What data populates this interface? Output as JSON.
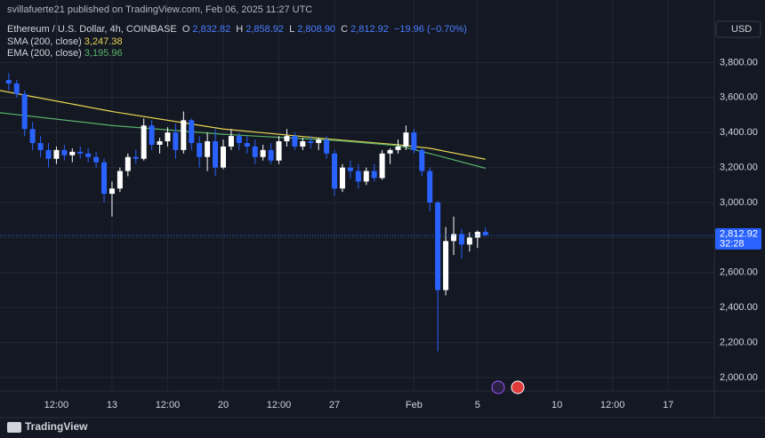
{
  "chart_data": {
    "type": "candlestick",
    "published": "svillafuerte21 published on TradingView.com, Feb 06, 2025 11:27 UTC",
    "symbol": "Ethereum / U.S. Dollar, 4h, COINBASE",
    "ohlc_legend": {
      "o_key": "O",
      "o": "2,832.82",
      "h_key": "H",
      "h": "2,858.92",
      "l_key": "L",
      "l": "2,808.90",
      "c_key": "C",
      "c": "2,812.92",
      "change": "−19.96 (−0.70%)"
    },
    "currency": "USD",
    "last_price_label": "2,812.92",
    "countdown": "32:28",
    "brand": "TradingView",
    "up_color": "#ffffff",
    "down_color": "#2962ff",
    "grid": true,
    "xlim": [
      5.95,
      50.9
    ],
    "xticks": [
      {
        "value": 9.5,
        "label": "12:00"
      },
      13,
      {
        "value": 16.5,
        "label": "12:00"
      },
      20,
      {
        "value": 23.5,
        "label": "12:00"
      },
      27,
      {
        "value": 32,
        "label": "Feb"
      },
      {
        "value": 36,
        "label": "5"
      },
      {
        "value": 41,
        "label": "10"
      },
      {
        "value": 44.5,
        "label": "12:00"
      },
      {
        "value": 48,
        "label": "17"
      }
    ],
    "ylim": [
      1924,
      4157
    ],
    "yticks": [
      {
        "value": 2000,
        "label": "2,000.00"
      },
      {
        "value": 2200,
        "label": "2,200.00"
      },
      {
        "value": 2400,
        "label": "2,400.00"
      },
      {
        "value": 2600,
        "label": "2,600.00"
      },
      {
        "value": 2800,
        "label": "2,800.00"
      },
      {
        "value": 3000,
        "label": "3,000.00"
      },
      {
        "value": 3200,
        "label": "3,200.00"
      },
      {
        "value": 3400,
        "label": "3,400.00"
      },
      {
        "value": 3600,
        "label": "3,600.00"
      },
      {
        "value": 3800,
        "label": "3,800.00"
      }
    ],
    "x": [
      6.5,
      7,
      7.5,
      8,
      8.5,
      9,
      9.5,
      10,
      10.5,
      11,
      11.5,
      12,
      12.5,
      13,
      13.5,
      14,
      14.5,
      15,
      15.5,
      16,
      16.5,
      17,
      17.5,
      18,
      18.5,
      19,
      19.5,
      20,
      20.5,
      21,
      21.5,
      22,
      22.5,
      23,
      23.5,
      24,
      24.5,
      25,
      25.5,
      26,
      26.5,
      27,
      27.5,
      28,
      28.5,
      29,
      29.5,
      30,
      30.5,
      31,
      31.5,
      32,
      32.5,
      33,
      33.5,
      34,
      34.5,
      35,
      35.5,
      36,
      36.5
    ],
    "open": [
      3700,
      3680,
      3620,
      3420,
      3340,
      3300,
      3250,
      3300,
      3270,
      3290,
      3280,
      3260,
      3230,
      3050,
      3080,
      3180,
      3260,
      3250,
      3440,
      3330,
      3350,
      3400,
      3300,
      3470,
      3340,
      3260,
      3350,
      3200,
      3320,
      3380,
      3340,
      3320,
      3260,
      3300,
      3240,
      3350,
      3380,
      3320,
      3350,
      3340,
      3360,
      3280,
      3080,
      3200,
      3180,
      3120,
      3180,
      3140,
      3280,
      3300,
      3320,
      3400,
      3300,
      3180,
      3000,
      2500,
      2780,
      2820,
      2760,
      2800,
      2832.82
    ],
    "high": [
      3740,
      3700,
      3640,
      3460,
      3380,
      3340,
      3320,
      3330,
      3310,
      3320,
      3310,
      3290,
      3250,
      3120,
      3200,
      3280,
      3300,
      3480,
      3470,
      3370,
      3430,
      3450,
      3520,
      3480,
      3380,
      3400,
      3420,
      3360,
      3420,
      3400,
      3380,
      3360,
      3330,
      3340,
      3380,
      3420,
      3400,
      3370,
      3380,
      3370,
      3380,
      3300,
      3220,
      3240,
      3220,
      3200,
      3220,
      3300,
      3310,
      3360,
      3440,
      3420,
      3310,
      3200,
      3010,
      2860,
      2920,
      2850,
      2830,
      2840,
      2858.92
    ],
    "low": [
      3640,
      3600,
      3380,
      3300,
      3260,
      3200,
      3220,
      3240,
      3230,
      3250,
      3230,
      3200,
      3000,
      2920,
      3060,
      3150,
      3220,
      3240,
      3300,
      3280,
      3320,
      3250,
      3280,
      3300,
      3200,
      3180,
      3150,
      3190,
      3300,
      3300,
      3280,
      3220,
      3240,
      3220,
      3220,
      3320,
      3300,
      3300,
      3310,
      3300,
      3250,
      3040,
      3060,
      3140,
      3080,
      3100,
      3120,
      3130,
      3220,
      3280,
      3300,
      3280,
      3150,
      2950,
      2150,
      2470,
      2700,
      2680,
      2720,
      2740,
      2808.9
    ],
    "close": [
      3680,
      3620,
      3420,
      3340,
      3300,
      3250,
      3300,
      3270,
      3290,
      3280,
      3260,
      3230,
      3050,
      3080,
      3180,
      3260,
      3250,
      3440,
      3330,
      3350,
      3400,
      3300,
      3470,
      3340,
      3260,
      3350,
      3200,
      3320,
      3380,
      3340,
      3320,
      3260,
      3300,
      3240,
      3350,
      3380,
      3320,
      3350,
      3340,
      3360,
      3280,
      3080,
      3200,
      3180,
      3120,
      3180,
      3140,
      3280,
      3300,
      3320,
      3400,
      3300,
      3180,
      3000,
      2500,
      2780,
      2820,
      2760,
      2800,
      2832.82,
      2812.92
    ],
    "series": [
      {
        "name": "SMA (200, close)",
        "value_label": "3,247.38",
        "color": "#e6d451",
        "x": [
          5.95,
          13,
          20,
          27,
          31,
          33,
          36.5
        ],
        "values": [
          3640,
          3520,
          3420,
          3360,
          3330,
          3310,
          3247.38
        ]
      },
      {
        "name": "EMA (200, close)",
        "value_label": "3,195.96",
        "color": "#57b26a",
        "x": [
          5.95,
          13,
          20,
          27,
          31,
          33,
          36.5
        ],
        "values": [
          3513,
          3440,
          3390,
          3355,
          3325,
          3280,
          3195.96
        ]
      }
    ]
  }
}
